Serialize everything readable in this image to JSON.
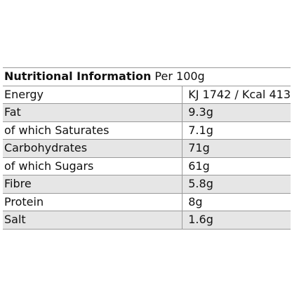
{
  "table": {
    "title_bold": "Nutritional Information",
    "title_rest": " Per 100g",
    "rows": [
      {
        "name": "Energy",
        "value": "KJ 1742 / Kcal 413"
      },
      {
        "name": "Fat",
        "value": "9.3g"
      },
      {
        "name": "of which Saturates",
        "value": "7.1g"
      },
      {
        "name": "Carbohydrates",
        "value": "71g"
      },
      {
        "name": "of which Sugars",
        "value": "61g"
      },
      {
        "name": "Fibre",
        "value": "5.8g"
      },
      {
        "name": "Protein",
        "value": "8g"
      },
      {
        "name": "Salt",
        "value": "1.6g"
      }
    ]
  },
  "colors": {
    "shaded_row": "#e6e6e6",
    "border": "#9a9a9a",
    "text": "#111111"
  }
}
